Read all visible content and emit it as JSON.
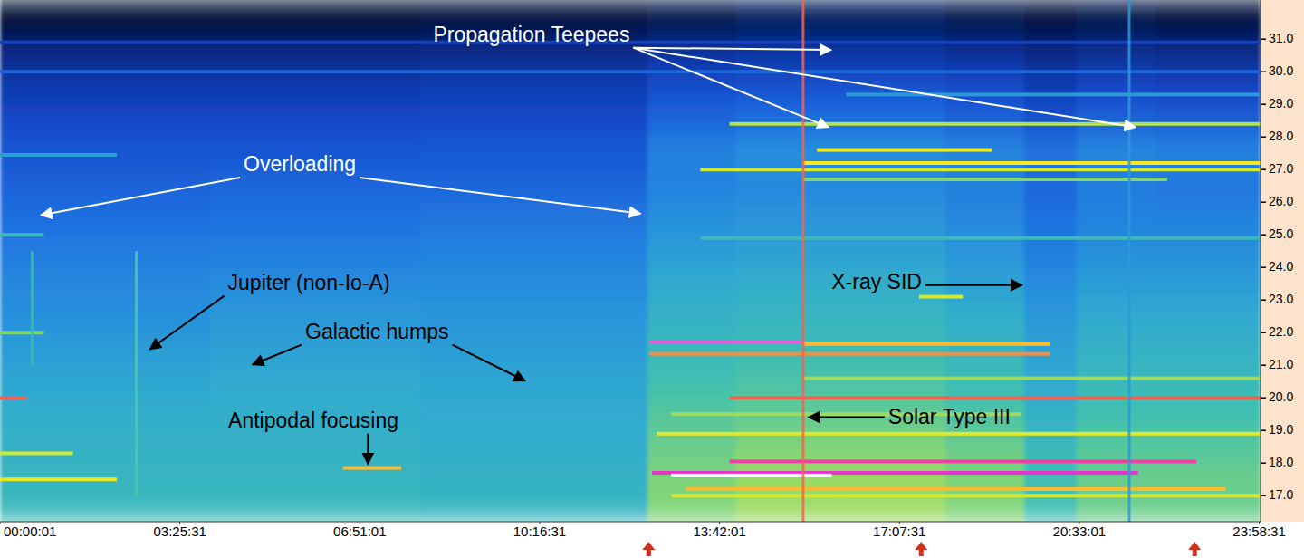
{
  "chart_data": {
    "type": "spectrogram",
    "xlim": [
      0,
      86400
    ],
    "ylim": [
      16.2,
      32.2
    ],
    "xticks": [
      {
        "value": 1,
        "label": "00:00:01"
      },
      {
        "value": 12331,
        "label": "03:25:31"
      },
      {
        "value": 24661,
        "label": "06:51:01"
      },
      {
        "value": 36991,
        "label": "10:16:31"
      },
      {
        "value": 49321,
        "label": "13:42:01"
      },
      {
        "value": 61651,
        "label": "17:07:31"
      },
      {
        "value": 73981,
        "label": "20:33:01"
      },
      {
        "value": 86311,
        "label": "23:58:31"
      }
    ],
    "yticks": [
      {
        "value": 17,
        "label": "17.0"
      },
      {
        "value": 18,
        "label": "18.0"
      },
      {
        "value": 19,
        "label": "19.0"
      },
      {
        "value": 20,
        "label": "20.0"
      },
      {
        "value": 21,
        "label": "21.0"
      },
      {
        "value": 22,
        "label": "22.0"
      },
      {
        "value": 23,
        "label": "23.0"
      },
      {
        "value": 24,
        "label": "24.0"
      },
      {
        "value": 25,
        "label": "25.0"
      },
      {
        "value": 26,
        "label": "26.0"
      },
      {
        "value": 27,
        "label": "27.0"
      },
      {
        "value": 28,
        "label": "28.0"
      },
      {
        "value": 29,
        "label": "29.0"
      },
      {
        "value": 30,
        "label": "30.0"
      },
      {
        "value": 31,
        "label": "31.0"
      }
    ],
    "zlim": [
      0,
      100
    ],
    "time_edges": [
      0,
      14400,
      28800,
      44400,
      50400,
      57600,
      64800,
      70200,
      73800,
      79200,
      86400
    ],
    "freq_edges": [
      16.2,
      17,
      18,
      19,
      20,
      21,
      22,
      23,
      24,
      25,
      26,
      27,
      28,
      29,
      30,
      31,
      32.2
    ],
    "cells": [
      [
        58,
        57,
        56,
        55,
        53,
        51,
        48,
        46,
        43,
        40,
        37,
        34,
        30,
        26,
        20,
        8
      ],
      [
        58,
        57,
        56,
        55,
        54,
        52,
        50,
        47,
        44,
        41,
        38,
        34,
        30,
        26,
        20,
        8
      ],
      [
        57,
        56,
        55,
        54,
        53,
        51,
        49,
        47,
        45,
        42,
        38,
        35,
        31,
        27,
        21,
        10
      ],
      [
        66,
        66,
        64,
        62,
        60,
        58,
        56,
        54,
        51,
        48,
        45,
        45,
        38,
        32,
        24,
        12
      ],
      [
        68,
        68,
        66,
        63,
        61,
        59,
        57,
        55,
        52,
        49,
        46,
        48,
        40,
        33,
        25,
        14
      ],
      [
        68,
        68,
        66,
        63,
        61,
        59,
        57,
        55,
        52,
        49,
        46,
        48,
        40,
        33,
        25,
        14
      ],
      [
        66,
        66,
        64,
        61,
        59,
        57,
        55,
        52,
        49,
        46,
        44,
        46,
        37,
        31,
        23,
        12
      ],
      [
        60,
        60,
        58,
        56,
        54,
        52,
        50,
        47,
        44,
        41,
        38,
        42,
        33,
        27,
        20,
        10
      ],
      [
        64,
        64,
        62,
        60,
        58,
        56,
        54,
        51,
        48,
        45,
        43,
        46,
        37,
        30,
        22,
        12
      ],
      [
        64,
        64,
        62,
        60,
        58,
        56,
        54,
        51,
        48,
        45,
        42,
        45,
        36,
        29,
        21,
        10
      ]
    ],
    "bands": [
      {
        "freq": 17.7,
        "start": 44700,
        "end": 78000,
        "level": 90
      },
      {
        "freq": 17.62,
        "start": 46000,
        "end": 57000,
        "level": 100
      },
      {
        "freq": 18.05,
        "start": 50000,
        "end": 82000,
        "level": 88
      },
      {
        "freq": 17.2,
        "start": 47000,
        "end": 84000,
        "level": 80
      },
      {
        "freq": 17.5,
        "start": 0,
        "end": 8000,
        "level": 76
      },
      {
        "freq": 18.3,
        "start": 0,
        "end": 5000,
        "level": 72
      },
      {
        "freq": 17.85,
        "start": 23500,
        "end": 27500,
        "level": 80
      },
      {
        "freq": 21.7,
        "start": 44500,
        "end": 55000,
        "level": 92
      },
      {
        "freq": 21.65,
        "start": 55000,
        "end": 72000,
        "level": 80
      },
      {
        "freq": 21.35,
        "start": 44500,
        "end": 72000,
        "level": 82
      },
      {
        "freq": 20.0,
        "start": 0,
        "end": 1800,
        "level": 84
      },
      {
        "freq": 20.0,
        "start": 50000,
        "end": 86400,
        "level": 84
      },
      {
        "freq": 27.2,
        "start": 55000,
        "end": 86400,
        "level": 78
      },
      {
        "freq": 27.0,
        "start": 48000,
        "end": 86400,
        "level": 72
      },
      {
        "freq": 27.6,
        "start": 56000,
        "end": 68000,
        "level": 76
      },
      {
        "freq": 28.4,
        "start": 50000,
        "end": 86400,
        "level": 70
      },
      {
        "freq": 26.7,
        "start": 55000,
        "end": 80000,
        "level": 66
      },
      {
        "freq": 18.9,
        "start": 45000,
        "end": 86400,
        "level": 74
      },
      {
        "freq": 20.6,
        "start": 55000,
        "end": 86400,
        "level": 68
      },
      {
        "freq": 23.1,
        "start": 63000,
        "end": 66000,
        "level": 72
      },
      {
        "freq": 24.9,
        "start": 48000,
        "end": 86400,
        "level": 58
      },
      {
        "freq": 25.0,
        "start": 0,
        "end": 3000,
        "level": 58
      },
      {
        "freq": 22.0,
        "start": 0,
        "end": 3000,
        "level": 66
      },
      {
        "freq": 29.3,
        "start": 58000,
        "end": 86400,
        "level": 50
      },
      {
        "freq": 30.0,
        "start": 0,
        "end": 86400,
        "level": 38
      },
      {
        "freq": 30.9,
        "start": 0,
        "end": 86400,
        "level": 28
      },
      {
        "freq": 27.45,
        "start": 0,
        "end": 8000,
        "level": 52
      },
      {
        "freq": 17.0,
        "start": 46000,
        "end": 86400,
        "level": 72
      },
      {
        "freq": 19.5,
        "start": 46000,
        "end": 70000,
        "level": 68
      }
    ],
    "bursts": [
      {
        "time": 55050,
        "fmin": 16.2,
        "fmax": 32.2,
        "level": 84
      },
      {
        "time": 77400,
        "fmin": 16.2,
        "fmax": 32.2,
        "level": 50
      },
      {
        "time": 9340,
        "fmin": 17.0,
        "fmax": 24.5,
        "level": 62
      },
      {
        "time": 2200,
        "fmin": 21.0,
        "fmax": 24.5,
        "level": 58
      }
    ],
    "markers": [
      44460,
      63140,
      81880
    ],
    "annotations": [
      {
        "text": "Propagation Teepees",
        "x": 36430,
        "y": 31.1,
        "color": "#ffffff",
        "targets": [
          [
            56970,
            30.67
          ],
          [
            56790,
            28.3
          ],
          [
            77830,
            28.3
          ]
        ]
      },
      {
        "text": "Overloading",
        "x": 20550,
        "y": 27.12,
        "color": "#ffffff",
        "targets": [
          [
            2800,
            25.6
          ],
          [
            43900,
            25.65
          ]
        ]
      },
      {
        "text": "Jupiter (non-Io-A)",
        "x": 21170,
        "y": 23.49,
        "color": "#000000",
        "targets": [
          [
            10270,
            21.49
          ]
        ]
      },
      {
        "text": "Galactic humps",
        "x": 25840,
        "y": 21.99,
        "color": "#000000",
        "targets": [
          [
            17310,
            21.02
          ],
          [
            35990,
            20.52
          ]
        ]
      },
      {
        "text": "Antipodal focusing",
        "x": 21480,
        "y": 19.27,
        "color": "#000000",
        "targets": [
          [
            25220,
            17.97
          ]
        ]
      },
      {
        "text": "X-ray SID",
        "x": 60090,
        "y": 23.51,
        "color": "#000000",
        "targets": [
          [
            70050,
            23.46
          ]
        ]
      },
      {
        "text": "Solar Type III",
        "x": 65070,
        "y": 19.36,
        "color": "#000000",
        "targets": [
          [
            55420,
            19.41
          ]
        ]
      }
    ]
  }
}
